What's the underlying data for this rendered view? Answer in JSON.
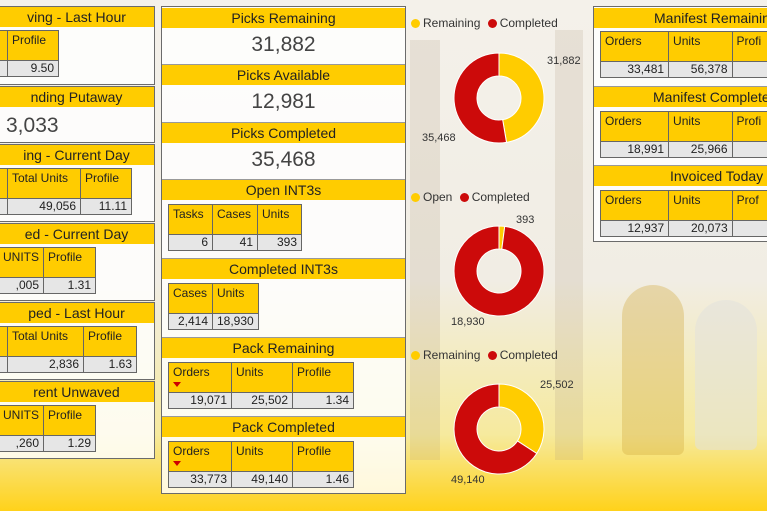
{
  "colors": {
    "accent": "#ffcc00",
    "completed": "#cc0a0a",
    "remaining": "#ffcc00"
  },
  "left": {
    "waving_last_hour": {
      "title": "ving - Last Hour",
      "col": "Profile",
      "value": "9.50"
    },
    "pending_putaway": {
      "title": "nding Putaway",
      "value": "3,033"
    },
    "picking_current_day": {
      "title": "ing - Current Day",
      "cols": [
        "Total Units",
        "Profile"
      ],
      "values": [
        "49,056",
        "11.11"
      ]
    },
    "picked_current_day": {
      "title": "ed - Current Day",
      "cols": [
        "UNITS",
        "Profile"
      ],
      "values": [
        ",005",
        "1.31"
      ]
    },
    "shipped_last_hour": {
      "title": "ped - Last Hour",
      "cols": [
        "Total Units",
        "Profile"
      ],
      "values": [
        "2,836",
        "1.63"
      ]
    },
    "current_unwaved": {
      "title": "rent Unwaved",
      "cols": [
        "UNITS",
        "Profile"
      ],
      "values": [
        ",260",
        "1.29"
      ]
    }
  },
  "middle": {
    "picks_remaining": {
      "title": "Picks Remaining",
      "value": "31,882"
    },
    "picks_available": {
      "title": "Picks Available",
      "value": "12,981"
    },
    "picks_completed": {
      "title": "Picks Completed",
      "value": "35,468"
    },
    "open_int3s": {
      "title": "Open INT3s",
      "cols": [
        "Tasks",
        "Cases",
        "Units"
      ],
      "values": [
        "6",
        "41",
        "393"
      ]
    },
    "completed_int3s": {
      "title": "Completed INT3s",
      "cols": [
        "Cases",
        "Units"
      ],
      "values": [
        "2,414",
        "18,930"
      ]
    },
    "pack_remaining": {
      "title": "Pack Remaining",
      "cols": [
        "Orders",
        "Units",
        "Profile"
      ],
      "values": [
        "19,071",
        "25,502",
        "1.34"
      ]
    },
    "pack_completed": {
      "title": "Pack Completed",
      "cols": [
        "Orders",
        "Units",
        "Profile"
      ],
      "values": [
        "33,773",
        "49,140",
        "1.46"
      ]
    }
  },
  "charts": [
    {
      "legend": [
        "Remaining",
        "Completed"
      ],
      "values": [
        31882,
        35468
      ],
      "labels": [
        "31,882",
        "35,468"
      ]
    },
    {
      "legend": [
        "Open",
        "Completed"
      ],
      "values": [
        393,
        18930
      ],
      "labels": [
        "393",
        "18,930"
      ]
    },
    {
      "legend": [
        "Remaining",
        "Completed"
      ],
      "values": [
        25502,
        49140
      ],
      "labels": [
        "25,502",
        "49,140"
      ]
    }
  ],
  "right": {
    "manifest_remaining": {
      "title": "Manifest Remainin",
      "cols": [
        "Orders",
        "Units",
        "Profi"
      ],
      "values": [
        "33,481",
        "56,378",
        ""
      ]
    },
    "manifest_completed": {
      "title": "Manifest Complete",
      "cols": [
        "Orders",
        "Units",
        "Profi"
      ],
      "values": [
        "18,991",
        "25,966",
        ""
      ]
    },
    "invoiced_today": {
      "title": "Invoiced Today",
      "cols": [
        "Orders",
        "Units",
        "Prof"
      ],
      "values": [
        "12,937",
        "20,073",
        ""
      ]
    }
  }
}
